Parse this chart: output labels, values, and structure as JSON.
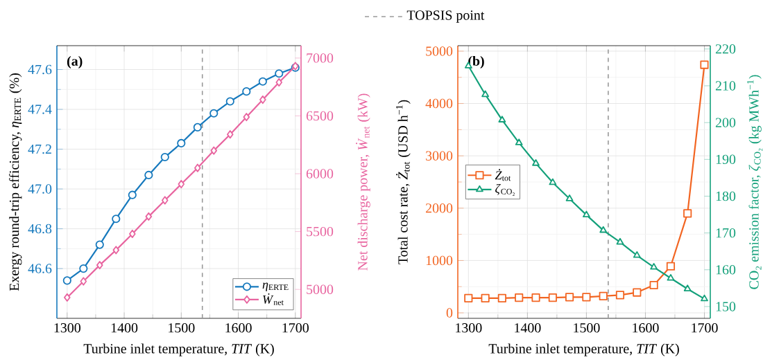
{
  "chart_data": [
    {
      "type": "line",
      "title": "(a)",
      "xlabel": "Turbine inlet temperature, *TIT* (K)",
      "ylabel": "Exergy round-trip efficiency, *η*$_{ERTE}$ (%)",
      "y2label": "Net discharge power, *Ẇ*$_{net}$ (kW)",
      "x": [
        1300,
        1328.6,
        1357.1,
        1385.7,
        1414.3,
        1442.9,
        1471.4,
        1500,
        1528.6,
        1557.1,
        1585.7,
        1614.3,
        1642.9,
        1671.4,
        1700
      ],
      "xlim": [
        1282,
        1710
      ],
      "xticks": [
        1300,
        1400,
        1500,
        1600,
        1700
      ],
      "ylim": [
        46.35,
        47.72
      ],
      "yticks": [
        46.6,
        46.8,
        {
          "value": 47,
          "label": "47.0"
        },
        47.2,
        47.4,
        47.6
      ],
      "y2lim": [
        4750,
        7107
      ],
      "y2ticks": [
        5000,
        5500,
        6000,
        6500,
        7000
      ],
      "grid": true,
      "legend": "bottom right",
      "ref_lines": [
        {
          "axis": "x",
          "value": 1537,
          "color": "#999999",
          "line_style": "dashed"
        }
      ],
      "series": [
        {
          "name": "*η*$_{ERTE}$",
          "color": "#1679bd",
          "marker": "circle",
          "values": [
            46.54,
            46.6,
            46.72,
            46.85,
            46.97,
            47.07,
            47.16,
            47.23,
            47.31,
            47.38,
            47.44,
            47.49,
            47.54,
            47.58,
            47.61
          ]
        },
        {
          "name": "*Ẇ*$_{net}$",
          "color": "#e8649f",
          "marker": "diamond",
          "axis": "y2",
          "values": [
            4930,
            5070,
            5210,
            5340,
            5480,
            5630,
            5770,
            5910,
            6050,
            6200,
            6340,
            6490,
            6640,
            6790,
            6930
          ]
        }
      ]
    },
    {
      "type": "line",
      "title": "(b)",
      "xlabel": "Turbine inlet temperature, *TIT* (K)",
      "ylabel": "Total cost rate, *Ż*$_{tot}$ (USD h$^{−1}$)",
      "y2label": "CO₂ emission factor, *ζ*$_{CO₂}$ (kg MWh$^{−1}$)",
      "x": [
        1300,
        1328.6,
        1357.1,
        1385.7,
        1414.3,
        1442.9,
        1471.4,
        1500,
        1528.6,
        1557.1,
        1585.7,
        1614.3,
        1642.9,
        1671.4,
        1700
      ],
      "xlim": [
        1282,
        1710
      ],
      "xticks": [
        1300,
        1400,
        1500,
        1600,
        1700
      ],
      "ylim": [
        -105,
        5105
      ],
      "yticks": [
        0,
        1000,
        2000,
        3000,
        4000,
        5000
      ],
      "y2lim": [
        146.8,
        220.9
      ],
      "y2ticks": [
        150,
        160,
        170,
        180,
        190,
        200,
        210,
        220
      ],
      "grid": true,
      "legend": "left",
      "ref_lines": [
        {
          "axis": "x",
          "value": 1537,
          "label": "TOPSIS point",
          "color": "#999999",
          "line_style": "dashed"
        }
      ],
      "series": [
        {
          "name": "*Ż*$_{tot}$",
          "color": "#f26522",
          "marker": "square",
          "values": [
            280,
            280,
            280,
            290,
            290,
            290,
            300,
            300,
            320,
            340,
            390,
            530,
            890,
            1900,
            4740
          ]
        },
        {
          "name": "*ζ*$_{CO₂}$",
          "color": "#13a07a",
          "marker": "triangle",
          "axis": "y2",
          "values": [
            215.4,
            207.6,
            200.7,
            194.5,
            188.9,
            183.7,
            179.3,
            174.9,
            170.7,
            167.5,
            163.9,
            160.7,
            157.7,
            154.8,
            152.1
          ]
        }
      ]
    }
  ]
}
